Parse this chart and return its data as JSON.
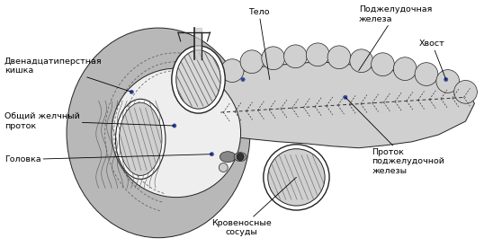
{
  "bg_color": "#ffffff",
  "labels": {
    "duodenum": "Двенадцатиперстная\nкишка",
    "bile_duct": "Общий желчный\nпроток",
    "head": "Головка",
    "body": "Тело",
    "pancreas": "Поджелудочная\nжелеза",
    "tail": "Хвост",
    "pancreatic_duct": "Проток\nподжелудочной\nжелезы",
    "blood_vessels": "Кровеносные\nсосуды"
  },
  "colors": {
    "duodenum_outer": "#b8b8b8",
    "duodenum_inner": "#d8d8d8",
    "pancreas_fill": "#d0d0d0",
    "pancreas_inner": "#e0e0e0",
    "vessel_fill": "#c8c8c8",
    "vessel_inner": "#e8e8e8",
    "stripe": "#888888",
    "outline": "#222222",
    "text_color": "#000000",
    "dot_color": "#334499"
  },
  "figsize": [
    5.48,
    2.75
  ],
  "dpi": 100
}
